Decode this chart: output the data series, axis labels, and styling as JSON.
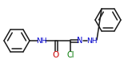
{
  "bg_color": "#ffffff",
  "line_color": "#1a1a1a",
  "atom_colors": {
    "N": "#0000cc",
    "O": "#cc0000",
    "Cl": "#007700"
  },
  "figsize": [
    1.6,
    0.94
  ],
  "dpi": 100,
  "lw": 1.1
}
